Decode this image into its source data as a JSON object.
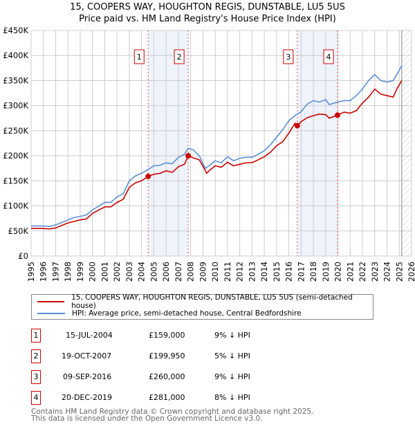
{
  "chart_data": {
    "type": "line",
    "title": "15, COOPERS WAY, HOUGHTON REGIS, DUNSTABLE, LU5 5US",
    "subtitle": "Price paid vs. HM Land Registry's House Price Index (HPI)",
    "xlim": [
      1995,
      2026
    ],
    "ylim": [
      0,
      450000
    ],
    "x_ticks": [
      "1995",
      "1996",
      "1997",
      "1998",
      "1999",
      "2000",
      "2001",
      "2002",
      "2003",
      "2004",
      "2005",
      "2006",
      "2007",
      "2008",
      "2009",
      "2010",
      "2011",
      "2012",
      "2013",
      "2014",
      "2015",
      "2016",
      "2017",
      "2018",
      "2019",
      "2020",
      "2021",
      "2022",
      "2023",
      "2024",
      "2025",
      "2026"
    ],
    "y_ticks": [
      {
        "v": 0,
        "l": "£0"
      },
      {
        "v": 50000,
        "l": "£50K"
      },
      {
        "v": 100000,
        "l": "£100K"
      },
      {
        "v": 150000,
        "l": "£150K"
      },
      {
        "v": 200000,
        "l": "£200K"
      },
      {
        "v": 250000,
        "l": "£250K"
      },
      {
        "v": 300000,
        "l": "£300K"
      },
      {
        "v": 350000,
        "l": "£350K"
      },
      {
        "v": 400000,
        "l": "£400K"
      },
      {
        "v": 450000,
        "l": "£450K"
      }
    ],
    "grid": true,
    "data_end": 2025.2,
    "series": [
      {
        "name": "15, COOPERS WAY, HOUGHTON REGIS, DUNSTABLE, LU5 5US (semi-detached house)",
        "color": "#cc0000",
        "points": [
          [
            1995,
            55
          ],
          [
            1996,
            55
          ],
          [
            1996.5,
            54
          ],
          [
            1997,
            56
          ],
          [
            1998,
            66
          ],
          [
            1998.5,
            69
          ],
          [
            1999,
            72
          ],
          [
            1999.5,
            74
          ],
          [
            2000,
            85
          ],
          [
            2001,
            98
          ],
          [
            2001.5,
            98
          ],
          [
            2002,
            107
          ],
          [
            2002.5,
            113
          ],
          [
            2003,
            137
          ],
          [
            2003.5,
            146
          ],
          [
            2004,
            150
          ],
          [
            2004.54,
            159
          ],
          [
            2005,
            163
          ],
          [
            2005.5,
            165
          ],
          [
            2006,
            170
          ],
          [
            2006.5,
            167
          ],
          [
            2007,
            178
          ],
          [
            2007.5,
            183
          ],
          [
            2007.8,
            200
          ],
          [
            2008.3,
            195
          ],
          [
            2008.7,
            192
          ],
          [
            2009.1,
            175
          ],
          [
            2009.3,
            165
          ],
          [
            2009.5,
            170
          ],
          [
            2010,
            180
          ],
          [
            2010.5,
            177
          ],
          [
            2011,
            187
          ],
          [
            2011.5,
            180
          ],
          [
            2012,
            183
          ],
          [
            2012.5,
            186
          ],
          [
            2013,
            186
          ],
          [
            2013.5,
            192
          ],
          [
            2014,
            198
          ],
          [
            2014.5,
            207
          ],
          [
            2015,
            220
          ],
          [
            2015.5,
            228
          ],
          [
            2016,
            245
          ],
          [
            2016.5,
            265
          ],
          [
            2016.69,
            260
          ],
          [
            2017,
            268
          ],
          [
            2017.5,
            276
          ],
          [
            2018,
            280
          ],
          [
            2018.5,
            283
          ],
          [
            2019,
            282
          ],
          [
            2019.3,
            275
          ],
          [
            2019.97,
            281
          ],
          [
            2020.5,
            287
          ],
          [
            2021,
            285
          ],
          [
            2021.5,
            290
          ],
          [
            2022,
            305
          ],
          [
            2022.5,
            317
          ],
          [
            2023,
            333
          ],
          [
            2023.5,
            323
          ],
          [
            2024,
            320
          ],
          [
            2024.5,
            317
          ],
          [
            2024.8,
            333
          ],
          [
            2025.2,
            350
          ]
        ]
      },
      {
        "name": "HPI: Average price, semi-detached house, Central Bedfordshire",
        "color": "#5b8fd4",
        "points": [
          [
            1995,
            60
          ],
          [
            1996,
            60
          ],
          [
            1996.5,
            59
          ],
          [
            1997,
            62
          ],
          [
            1998,
            72
          ],
          [
            1998.5,
            77
          ],
          [
            1999,
            79
          ],
          [
            1999.5,
            82
          ],
          [
            2000,
            92
          ],
          [
            2001,
            107
          ],
          [
            2001.5,
            107
          ],
          [
            2002,
            118
          ],
          [
            2002.5,
            124
          ],
          [
            2003,
            150
          ],
          [
            2003.5,
            160
          ],
          [
            2004,
            165
          ],
          [
            2004.5,
            172
          ],
          [
            2005,
            180
          ],
          [
            2005.5,
            181
          ],
          [
            2006,
            186
          ],
          [
            2006.5,
            184
          ],
          [
            2007,
            197
          ],
          [
            2007.5,
            203
          ],
          [
            2007.8,
            215
          ],
          [
            2008.2,
            212
          ],
          [
            2008.7,
            200
          ],
          [
            2009.2,
            175
          ],
          [
            2009.5,
            180
          ],
          [
            2010,
            190
          ],
          [
            2010.5,
            186
          ],
          [
            2011,
            198
          ],
          [
            2011.5,
            190
          ],
          [
            2012,
            195
          ],
          [
            2012.5,
            197
          ],
          [
            2013,
            197
          ],
          [
            2013.5,
            203
          ],
          [
            2014,
            210
          ],
          [
            2014.5,
            222
          ],
          [
            2015,
            237
          ],
          [
            2015.5,
            252
          ],
          [
            2016,
            270
          ],
          [
            2016.5,
            280
          ],
          [
            2017,
            288
          ],
          [
            2017.5,
            303
          ],
          [
            2018,
            310
          ],
          [
            2018.5,
            307
          ],
          [
            2019,
            312
          ],
          [
            2019.3,
            302
          ],
          [
            2019.8,
            306
          ],
          [
            2020.5,
            310
          ],
          [
            2021,
            310
          ],
          [
            2021.5,
            320
          ],
          [
            2022,
            333
          ],
          [
            2022.5,
            350
          ],
          [
            2023,
            362
          ],
          [
            2023.5,
            350
          ],
          [
            2024,
            347
          ],
          [
            2024.5,
            350
          ],
          [
            2024.8,
            362
          ],
          [
            2025.2,
            380
          ]
        ]
      }
    ],
    "sales": [
      {
        "n": "1",
        "x": 2004.54,
        "date": "15-JUL-2004",
        "price": "£159,000",
        "value": 159000,
        "hpi": "9% ↓ HPI"
      },
      {
        "n": "2",
        "x": 2007.8,
        "date": "19-OCT-2007",
        "price": "£199,950",
        "value": 199950,
        "hpi": "5% ↓ HPI"
      },
      {
        "n": "3",
        "x": 2016.69,
        "date": "09-SEP-2016",
        "price": "£260,000",
        "value": 260000,
        "hpi": "9% ↓ HPI"
      },
      {
        "n": "4",
        "x": 2019.97,
        "date": "20-DEC-2019",
        "price": "£281,000",
        "value": 281000,
        "hpi": "8% ↓ HPI"
      }
    ],
    "shaded_ranges": [
      [
        2004.54,
        2007.8
      ],
      [
        2016.69,
        2019.97
      ]
    ]
  },
  "footer": {
    "line1": "Contains HM Land Registry data © Crown copyright and database right 2025.",
    "line2": "This data is licensed under the Open Government Licence v3.0."
  }
}
